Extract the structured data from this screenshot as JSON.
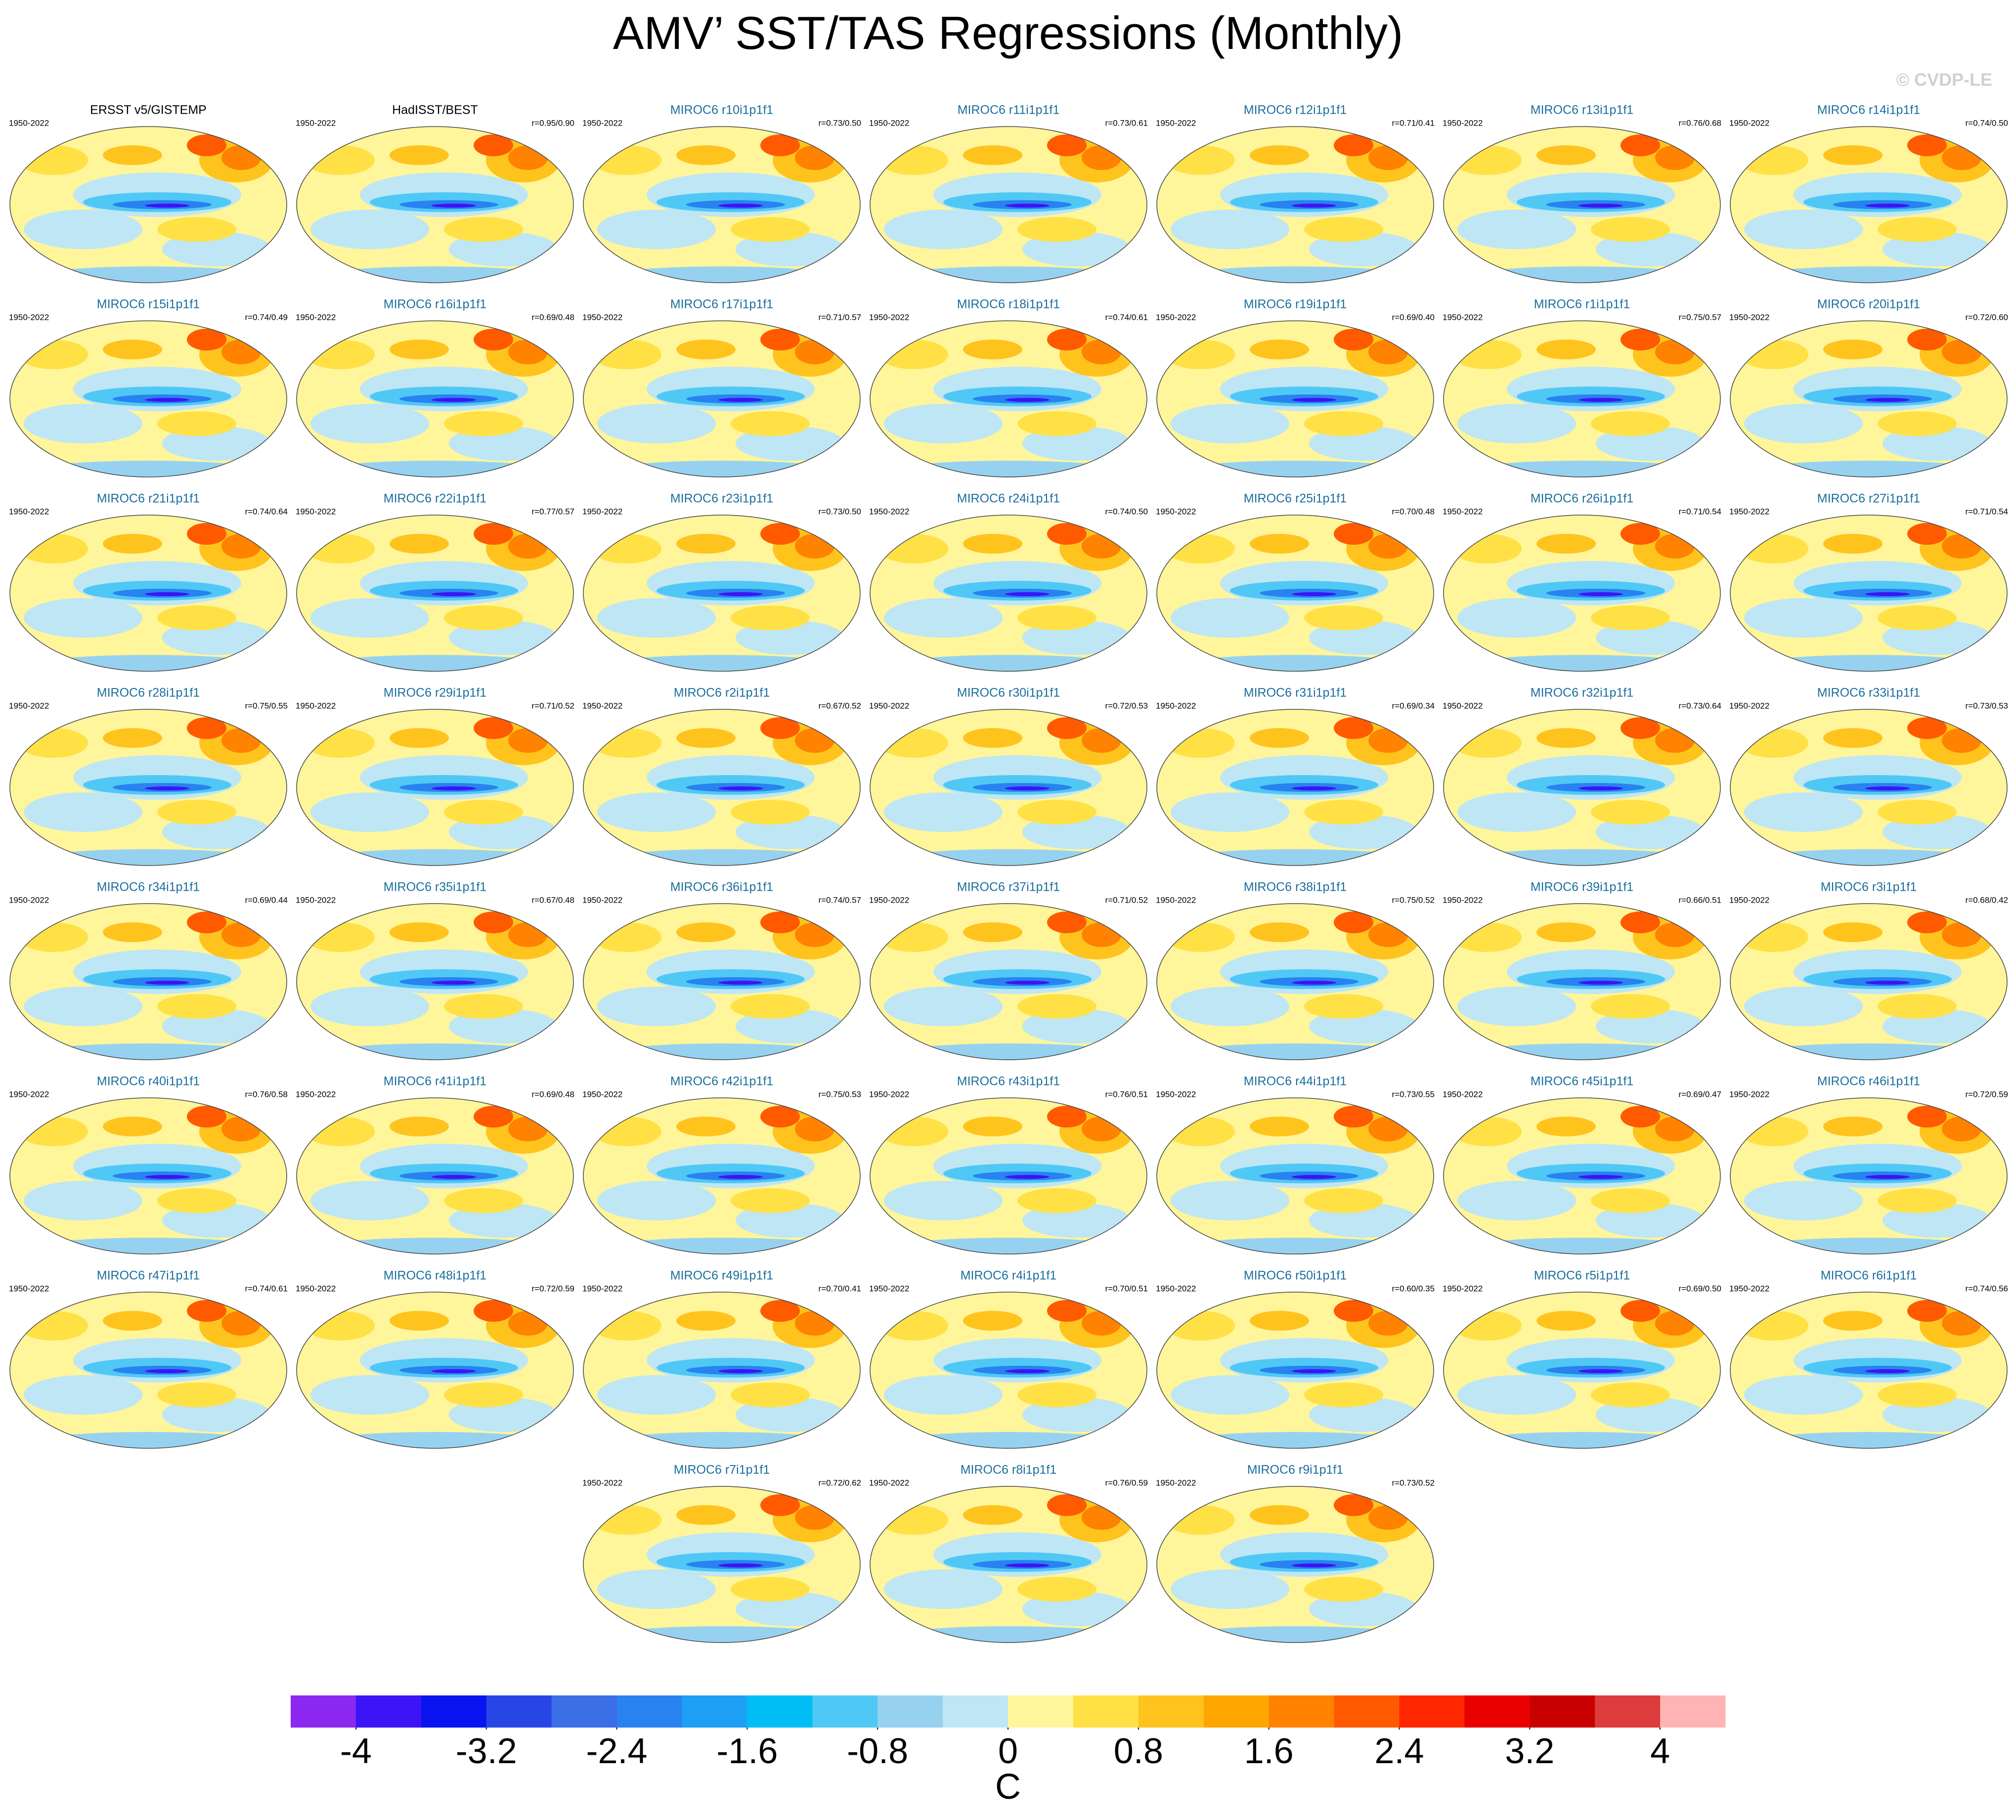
{
  "title": "AMV’ SST/TAS Regressions (Monthly)",
  "watermark": "© CVDP-LE",
  "panels": [
    {
      "title": "ERSST v5/GISTEMP",
      "period": "1950-2022",
      "color": "#000000"
    },
    {
      "title": "HadISST/BEST",
      "period": "1950-2022",
      "r": "r=0.95/0.90",
      "color": "#000000"
    },
    {
      "title": "MIROC6 r10i1p1f1",
      "period": "1950-2022",
      "r": "r=0.73/0.50",
      "color": "#1a6e9e"
    },
    {
      "title": "MIROC6 r11i1p1f1",
      "period": "1950-2022",
      "r": "r=0.73/0.61",
      "color": "#1a6e9e"
    },
    {
      "title": "MIROC6 r12i1p1f1",
      "period": "1950-2022",
      "r": "r=0.71/0.41",
      "color": "#1a6e9e"
    },
    {
      "title": "MIROC6 r13i1p1f1",
      "period": "1950-2022",
      "r": "r=0.76/0.68",
      "color": "#1a6e9e"
    },
    {
      "title": "MIROC6 r14i1p1f1",
      "period": "1950-2022",
      "r": "r=0.74/0.50",
      "color": "#1a6e9e"
    },
    {
      "title": "MIROC6 r15i1p1f1",
      "period": "1950-2022",
      "r": "r=0.74/0.49",
      "color": "#1a6e9e"
    },
    {
      "title": "MIROC6 r16i1p1f1",
      "period": "1950-2022",
      "r": "r=0.69/0.48",
      "color": "#1a6e9e"
    },
    {
      "title": "MIROC6 r17i1p1f1",
      "period": "1950-2022",
      "r": "r=0.71/0.57",
      "color": "#1a6e9e"
    },
    {
      "title": "MIROC6 r18i1p1f1",
      "period": "1950-2022",
      "r": "r=0.74/0.61",
      "color": "#1a6e9e"
    },
    {
      "title": "MIROC6 r19i1p1f1",
      "period": "1950-2022",
      "r": "r=0.69/0.40",
      "color": "#1a6e9e"
    },
    {
      "title": "MIROC6 r1i1p1f1",
      "period": "1950-2022",
      "r": "r=0.75/0.57",
      "color": "#1a6e9e"
    },
    {
      "title": "MIROC6 r20i1p1f1",
      "period": "1950-2022",
      "r": "r=0.72/0.60",
      "color": "#1a6e9e"
    },
    {
      "title": "MIROC6 r21i1p1f1",
      "period": "1950-2022",
      "r": "r=0.74/0.64",
      "color": "#1a6e9e"
    },
    {
      "title": "MIROC6 r22i1p1f1",
      "period": "1950-2022",
      "r": "r=0.77/0.57",
      "color": "#1a6e9e"
    },
    {
      "title": "MIROC6 r23i1p1f1",
      "period": "1950-2022",
      "r": "r=0.73/0.50",
      "color": "#1a6e9e"
    },
    {
      "title": "MIROC6 r24i1p1f1",
      "period": "1950-2022",
      "r": "r=0.74/0.50",
      "color": "#1a6e9e"
    },
    {
      "title": "MIROC6 r25i1p1f1",
      "period": "1950-2022",
      "r": "r=0.70/0.48",
      "color": "#1a6e9e"
    },
    {
      "title": "MIROC6 r26i1p1f1",
      "period": "1950-2022",
      "r": "r=0.71/0.54",
      "color": "#1a6e9e"
    },
    {
      "title": "MIROC6 r27i1p1f1",
      "period": "1950-2022",
      "r": "r=0.71/0.54",
      "color": "#1a6e9e"
    },
    {
      "title": "MIROC6 r28i1p1f1",
      "period": "1950-2022",
      "r": "r=0.75/0.55",
      "color": "#1a6e9e"
    },
    {
      "title": "MIROC6 r29i1p1f1",
      "period": "1950-2022",
      "r": "r=0.71/0.52",
      "color": "#1a6e9e"
    },
    {
      "title": "MIROC6 r2i1p1f1",
      "period": "1950-2022",
      "r": "r=0.67/0.52",
      "color": "#1a6e9e"
    },
    {
      "title": "MIROC6 r30i1p1f1",
      "period": "1950-2022",
      "r": "r=0.72/0.53",
      "color": "#1a6e9e"
    },
    {
      "title": "MIROC6 r31i1p1f1",
      "period": "1950-2022",
      "r": "r=0.69/0.34",
      "color": "#1a6e9e"
    },
    {
      "title": "MIROC6 r32i1p1f1",
      "period": "1950-2022",
      "r": "r=0.73/0.64",
      "color": "#1a6e9e"
    },
    {
      "title": "MIROC6 r33i1p1f1",
      "period": "1950-2022",
      "r": "r=0.73/0.53",
      "color": "#1a6e9e"
    },
    {
      "title": "MIROC6 r34i1p1f1",
      "period": "1950-2022",
      "r": "r=0.69/0.44",
      "color": "#1a6e9e"
    },
    {
      "title": "MIROC6 r35i1p1f1",
      "period": "1950-2022",
      "r": "r=0.67/0.48",
      "color": "#1a6e9e"
    },
    {
      "title": "MIROC6 r36i1p1f1",
      "period": "1950-2022",
      "r": "r=0.74/0.57",
      "color": "#1a6e9e"
    },
    {
      "title": "MIROC6 r37i1p1f1",
      "period": "1950-2022",
      "r": "r=0.71/0.52",
      "color": "#1a6e9e"
    },
    {
      "title": "MIROC6 r38i1p1f1",
      "period": "1950-2022",
      "r": "r=0.75/0.52",
      "color": "#1a6e9e"
    },
    {
      "title": "MIROC6 r39i1p1f1",
      "period": "1950-2022",
      "r": "r=0.66/0.51",
      "color": "#1a6e9e"
    },
    {
      "title": "MIROC6 r3i1p1f1",
      "period": "1950-2022",
      "r": "r=0.68/0.42",
      "color": "#1a6e9e"
    },
    {
      "title": "MIROC6 r40i1p1f1",
      "period": "1950-2022",
      "r": "r=0.76/0.58",
      "color": "#1a6e9e"
    },
    {
      "title": "MIROC6 r41i1p1f1",
      "period": "1950-2022",
      "r": "r=0.69/0.48",
      "color": "#1a6e9e"
    },
    {
      "title": "MIROC6 r42i1p1f1",
      "period": "1950-2022",
      "r": "r=0.75/0.53",
      "color": "#1a6e9e"
    },
    {
      "title": "MIROC6 r43i1p1f1",
      "period": "1950-2022",
      "r": "r=0.76/0.51",
      "color": "#1a6e9e"
    },
    {
      "title": "MIROC6 r44i1p1f1",
      "period": "1950-2022",
      "r": "r=0.73/0.55",
      "color": "#1a6e9e"
    },
    {
      "title": "MIROC6 r45i1p1f1",
      "period": "1950-2022",
      "r": "r=0.69/0.47",
      "color": "#1a6e9e"
    },
    {
      "title": "MIROC6 r46i1p1f1",
      "period": "1950-2022",
      "r": "r=0.72/0.59",
      "color": "#1a6e9e"
    },
    {
      "title": "MIROC6 r47i1p1f1",
      "period": "1950-2022",
      "r": "r=0.74/0.61",
      "color": "#1a6e9e"
    },
    {
      "title": "MIROC6 r48i1p1f1",
      "period": "1950-2022",
      "r": "r=0.72/0.59",
      "color": "#1a6e9e"
    },
    {
      "title": "MIROC6 r49i1p1f1",
      "period": "1950-2022",
      "r": "r=0.70/0.41",
      "color": "#1a6e9e"
    },
    {
      "title": "MIROC6 r4i1p1f1",
      "period": "1950-2022",
      "r": "r=0.70/0.51",
      "color": "#1a6e9e"
    },
    {
      "title": "MIROC6 r50i1p1f1",
      "period": "1950-2022",
      "r": "r=0.60/0.35",
      "color": "#1a6e9e"
    },
    {
      "title": "MIROC6 r5i1p1f1",
      "period": "1950-2022",
      "r": "r=0.69/0.50",
      "color": "#1a6e9e"
    },
    {
      "title": "MIROC6 r6i1p1f1",
      "period": "1950-2022",
      "r": "r=0.74/0.56",
      "color": "#1a6e9e"
    },
    {
      "title": "MIROC6 r7i1p1f1",
      "period": "1950-2022",
      "r": "r=0.72/0.62",
      "color": "#1a6e9e"
    },
    {
      "title": "MIROC6 r8i1p1f1",
      "period": "1950-2022",
      "r": "r=0.76/0.59",
      "color": "#1a6e9e"
    },
    {
      "title": "MIROC6 r9i1p1f1",
      "period": "1950-2022",
      "r": "r=0.73/0.52",
      "color": "#1a6e9e"
    }
  ],
  "colorbar": {
    "label": "C",
    "levels": [
      -4,
      -3.6,
      -3.2,
      -2.8,
      -2.4,
      -2,
      -1.6,
      -1.2,
      -0.8,
      -0.4,
      0,
      0.4,
      0.8,
      1.2,
      1.6,
      2,
      2.4,
      2.8,
      3.2,
      3.6,
      4
    ],
    "ticks": [
      -4,
      -3.2,
      -2.4,
      -1.6,
      -0.8,
      0,
      0.8,
      1.6,
      2.4,
      3.2,
      4
    ],
    "colors": [
      "#8c28f0",
      "#3c14f5",
      "#0a14f0",
      "#2846e6",
      "#3c6ee6",
      "#2882f0",
      "#1ea0f5",
      "#00bef5",
      "#50c8f5",
      "#96d2f0",
      "#bee6f5",
      "#fff59b",
      "#ffe146",
      "#ffc31e",
      "#ffa500",
      "#ff8200",
      "#ff5a00",
      "#ff2800",
      "#eb0000",
      "#c80000",
      "#dc3c3c",
      "#ffb4b4"
    ]
  }
}
